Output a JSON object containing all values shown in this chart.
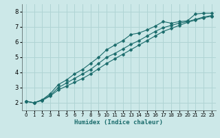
{
  "title": "",
  "xlabel": "Humidex (Indice chaleur)",
  "ylabel": "",
  "bg_color": "#cce8e8",
  "grid_color": "#b0d4d4",
  "line_color": "#1a6b6b",
  "xlim": [
    -0.5,
    23.5
  ],
  "ylim": [
    1.5,
    8.5
  ],
  "xticks": [
    0,
    1,
    2,
    3,
    4,
    5,
    6,
    7,
    8,
    9,
    10,
    11,
    12,
    13,
    14,
    15,
    16,
    17,
    18,
    19,
    20,
    21,
    22,
    23
  ],
  "yticks": [
    2,
    3,
    4,
    5,
    6,
    7,
    8
  ],
  "line1_x": [
    0,
    1,
    2,
    3,
    4,
    5,
    6,
    7,
    8,
    9,
    10,
    11,
    12,
    13,
    14,
    15,
    16,
    17,
    18,
    19,
    20,
    21,
    22,
    23
  ],
  "line1_y": [
    2.1,
    2.0,
    2.2,
    2.6,
    3.2,
    3.5,
    3.9,
    4.2,
    4.6,
    5.0,
    5.5,
    5.8,
    6.1,
    6.5,
    6.6,
    6.8,
    7.05,
    7.35,
    7.25,
    7.35,
    7.4,
    7.85,
    7.9,
    7.9
  ],
  "line2_x": [
    0,
    1,
    2,
    3,
    4,
    5,
    6,
    7,
    8,
    9,
    10,
    11,
    12,
    13,
    14,
    15,
    16,
    17,
    18,
    19,
    20,
    21,
    22,
    23
  ],
  "line2_y": [
    2.1,
    2.0,
    2.2,
    2.5,
    3.0,
    3.3,
    3.6,
    3.9,
    4.2,
    4.6,
    5.0,
    5.25,
    5.55,
    5.85,
    6.1,
    6.4,
    6.7,
    6.95,
    7.1,
    7.25,
    7.35,
    7.5,
    7.65,
    7.75
  ],
  "line3_x": [
    0,
    1,
    2,
    3,
    4,
    5,
    6,
    7,
    8,
    9,
    10,
    11,
    12,
    13,
    14,
    15,
    16,
    17,
    18,
    19,
    20,
    21,
    22,
    23
  ],
  "line3_y": [
    2.1,
    2.0,
    2.15,
    2.45,
    2.85,
    3.1,
    3.35,
    3.6,
    3.9,
    4.25,
    4.6,
    4.9,
    5.2,
    5.5,
    5.8,
    6.1,
    6.4,
    6.7,
    6.9,
    7.1,
    7.3,
    7.45,
    7.6,
    7.7
  ],
  "marker": "D",
  "markersize": 2.5,
  "linewidth": 0.8,
  "tick_fontsize_x": 5,
  "tick_fontsize_y": 6,
  "xlabel_fontsize": 6.5
}
